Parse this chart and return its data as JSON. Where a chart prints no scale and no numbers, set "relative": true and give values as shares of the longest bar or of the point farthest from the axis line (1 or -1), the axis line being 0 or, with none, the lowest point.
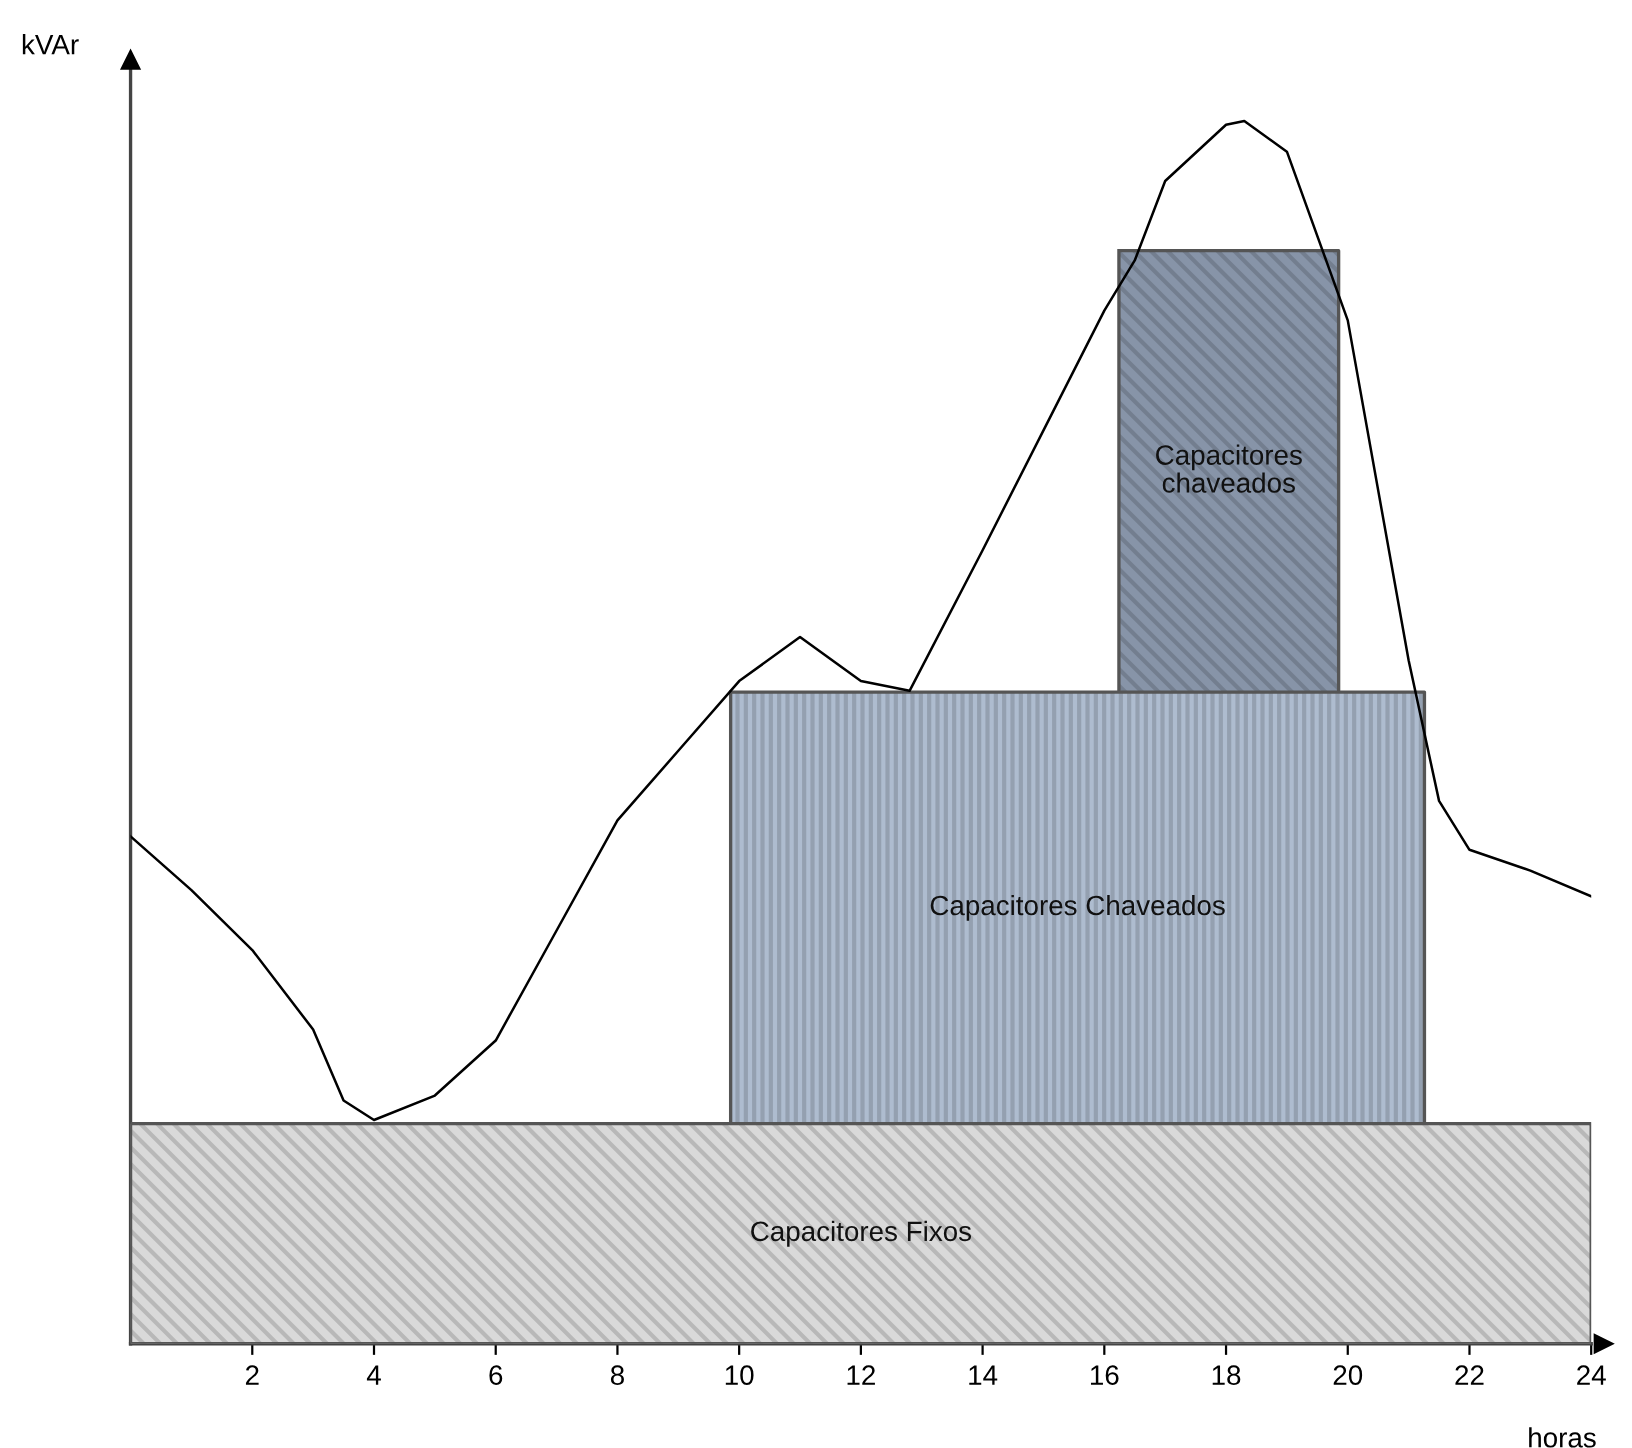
{
  "chart_data": {
    "type": "line",
    "relative": true,
    "xlabel": "horas",
    "ylabel": "kVAr",
    "xlim": [
      0,
      24
    ],
    "xticks": [
      2,
      4,
      6,
      8,
      10,
      12,
      14,
      16,
      18,
      20,
      22,
      24
    ],
    "grid": false,
    "legend": false,
    "tick_labels": "x",
    "series": [
      {
        "type": "area",
        "name": "Capacitores Fixos",
        "color": "#d9d9d9",
        "x": [
          0,
          24
        ],
        "values": [
          0.18,
          0.18
        ]
      },
      {
        "type": "area",
        "name": "Capacitores Chaveados",
        "color": "#aebccf",
        "x": [
          9.86,
          21.26
        ],
        "values": [
          0.533,
          0.533
        ]
      },
      {
        "type": "area",
        "name": "Capacitores\nchaveados",
        "color": "#8794a8",
        "x": [
          16.24,
          19.85
        ],
        "values": [
          0.894,
          0.894
        ]
      },
      {
        "type": "line",
        "color": "#000000",
        "x": [
          0,
          1,
          2,
          3,
          3.5,
          4,
          5,
          6,
          7,
          8,
          9,
          10,
          11,
          12,
          12.8,
          14,
          15,
          16,
          16.5,
          17,
          18,
          18.3,
          19,
          20,
          21,
          21.5,
          22,
          23,
          24
        ],
        "values": [
          0.415,
          0.371,
          0.322,
          0.257,
          0.199,
          0.183,
          0.203,
          0.248,
          0.338,
          0.428,
          0.485,
          0.542,
          0.578,
          0.542,
          0.534,
          0.649,
          0.747,
          0.845,
          0.886,
          0.951,
          0.997,
          1.0,
          0.975,
          0.837,
          0.559,
          0.444,
          0.404,
          0.387,
          0.366
        ]
      }
    ]
  }
}
